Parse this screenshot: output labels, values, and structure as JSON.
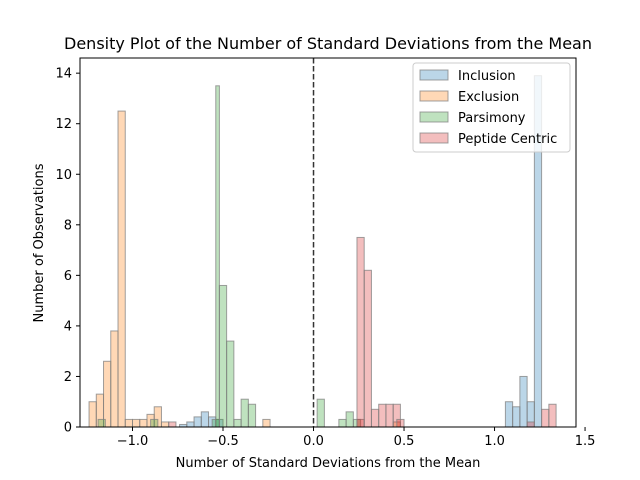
{
  "chart_data": {
    "type": "bar",
    "title": "Density Plot of the Number of Standard Deviations from the Mean",
    "xlabel": "Number of Standard Deviations from the Mean",
    "ylabel": "Number of Observations",
    "xlim": [
      -1.29,
      1.45
    ],
    "ylim": [
      0,
      14.6
    ],
    "xticks": [
      -1.0,
      -0.5,
      0.0,
      0.5,
      1.0,
      1.5
    ],
    "xtick_labels": [
      "−1.0",
      "−0.5",
      "0.0",
      "0.5",
      "1.0",
      "1.5"
    ],
    "yticks": [
      0,
      2,
      4,
      6,
      8,
      10,
      12,
      14
    ],
    "ytick_labels": [
      "0",
      "2",
      "4",
      "6",
      "8",
      "10",
      "12",
      "14"
    ],
    "reference_line": {
      "x": 0.0,
      "style": "dashed",
      "color": "#333333"
    },
    "legend_position": "top-right",
    "series": [
      {
        "name": "Inclusion",
        "color": "#1f77b4",
        "bins": [
          [
            -0.74,
            -0.7,
            0.1
          ],
          [
            -0.7,
            -0.66,
            0.2
          ],
          [
            -0.66,
            -0.62,
            0.4
          ],
          [
            -0.62,
            -0.58,
            0.6
          ],
          [
            -0.58,
            -0.54,
            0.4
          ],
          [
            -0.54,
            -0.5,
            0.3
          ],
          [
            1.06,
            1.1,
            1.0
          ],
          [
            1.1,
            1.14,
            0.8
          ],
          [
            1.14,
            1.18,
            2.0
          ],
          [
            1.18,
            1.22,
            1.0
          ],
          [
            1.22,
            1.26,
            13.9
          ]
        ]
      },
      {
        "name": "Exclusion",
        "color": "#ff7f0e",
        "bins": [
          [
            -1.24,
            -1.2,
            1.0
          ],
          [
            -1.2,
            -1.16,
            1.3
          ],
          [
            -1.16,
            -1.12,
            2.6
          ],
          [
            -1.12,
            -1.08,
            3.8
          ],
          [
            -1.08,
            -1.04,
            12.5
          ],
          [
            -1.04,
            -1.0,
            0.3
          ],
          [
            -1.0,
            -0.96,
            0.3
          ],
          [
            -0.96,
            -0.92,
            0.3
          ],
          [
            -0.92,
            -0.88,
            0.5
          ],
          [
            -0.88,
            -0.84,
            0.8
          ],
          [
            -0.84,
            -0.8,
            0.2
          ],
          [
            -0.28,
            -0.24,
            0.3
          ],
          [
            0.44,
            0.48,
            0.2
          ]
        ]
      },
      {
        "name": "Parsimony",
        "color": "#2ca02c",
        "bins": [
          [
            -1.19,
            -1.15,
            0.3
          ],
          [
            -0.9,
            -0.86,
            0.3
          ],
          [
            -0.56,
            -0.52,
            0.3
          ],
          [
            -0.54,
            -0.52,
            13.5
          ],
          [
            -0.52,
            -0.48,
            5.6
          ],
          [
            -0.48,
            -0.44,
            3.4
          ],
          [
            -0.44,
            -0.4,
            0.3
          ],
          [
            -0.4,
            -0.36,
            1.1
          ],
          [
            -0.36,
            -0.32,
            0.9
          ],
          [
            0.02,
            0.06,
            1.1
          ],
          [
            0.14,
            0.18,
            0.3
          ],
          [
            0.18,
            0.22,
            0.6
          ],
          [
            0.22,
            0.26,
            0.3
          ]
        ]
      },
      {
        "name": "Peptide Centric",
        "color": "#d62728",
        "bins": [
          [
            -0.8,
            -0.76,
            0.2
          ],
          [
            0.24,
            0.28,
            0.3
          ],
          [
            0.24,
            0.28,
            7.5
          ],
          [
            0.28,
            0.32,
            6.2
          ],
          [
            0.32,
            0.36,
            0.7
          ],
          [
            0.36,
            0.4,
            0.9
          ],
          [
            0.4,
            0.44,
            0.9
          ],
          [
            0.44,
            0.48,
            0.9
          ],
          [
            0.46,
            0.5,
            0.3
          ],
          [
            1.18,
            1.22,
            0.2
          ],
          [
            1.26,
            1.3,
            0.7
          ],
          [
            1.3,
            1.34,
            0.9
          ]
        ]
      }
    ]
  }
}
